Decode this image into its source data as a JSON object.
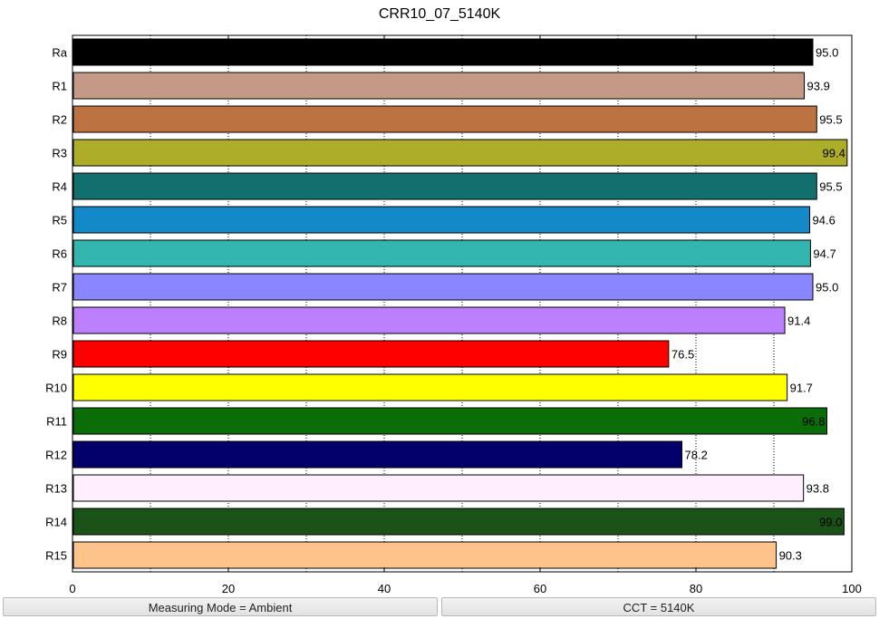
{
  "chart_data": {
    "type": "bar",
    "orientation": "horizontal",
    "title": "CRR10_07_5140K",
    "xlabel": "",
    "ylabel": "",
    "xlim": [
      0,
      100
    ],
    "xticks": [
      0,
      20,
      40,
      60,
      80,
      100
    ],
    "minor_gridlines": [
      10,
      30,
      50,
      70,
      90
    ],
    "grid": "dotted vertical",
    "categories": [
      "Ra",
      "R1",
      "R2",
      "R3",
      "R4",
      "R5",
      "R6",
      "R7",
      "R8",
      "R9",
      "R10",
      "R11",
      "R12",
      "R13",
      "R14",
      "R15"
    ],
    "values": [
      95.0,
      93.9,
      95.5,
      99.4,
      95.5,
      94.6,
      94.7,
      95.0,
      91.4,
      76.5,
      91.7,
      96.8,
      78.2,
      93.8,
      99.0,
      90.3
    ],
    "value_labels": [
      "95.0",
      "93.9",
      "95.5",
      "99.4",
      "95.5",
      "94.6",
      "94.7",
      "95.0",
      "91.4",
      "76.5",
      "91.7",
      "96.8",
      "78.2",
      "93.8",
      "99.0",
      "90.3"
    ],
    "colors": [
      "#000000",
      "#c49a86",
      "#bd7241",
      "#aead2a",
      "#11706d",
      "#1489c8",
      "#34b6b0",
      "#8a86fe",
      "#bc80fe",
      "#ff0000",
      "#ffff00",
      "#0a6d07",
      "#03006b",
      "#feeefe",
      "#1a5217",
      "#fec28b"
    ]
  },
  "status": {
    "left": "Measuring Mode = Ambient",
    "right": "CCT = 5140K"
  }
}
